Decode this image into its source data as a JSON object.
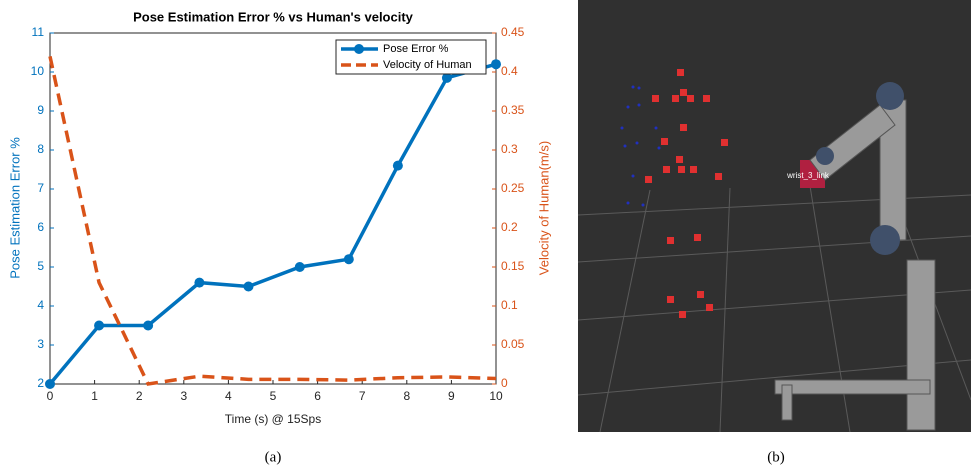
{
  "chart_data": {
    "type": "line",
    "title": "Pose Estimation Error % vs Human's velocity",
    "x_label": "Time (s) @ 15Sps",
    "y_label": "Pose Estimation Error %",
    "y2_label": "Velocity of Human(m/s)",
    "x": [
      0,
      1.1,
      2.2,
      3.35,
      4.45,
      5.6,
      6.7,
      7.8,
      8.9,
      10
    ],
    "xlim": [
      0,
      10
    ],
    "xticks": [
      0,
      1,
      2,
      3,
      4,
      5,
      6,
      7,
      8,
      9,
      10
    ],
    "ylim": [
      2,
      11
    ],
    "yticks": [
      2,
      3,
      4,
      5,
      6,
      7,
      8,
      9,
      10,
      11
    ],
    "y2lim": [
      0,
      0.45
    ],
    "y2ticks": [
      0,
      0.05,
      0.1,
      0.15,
      0.2,
      0.25,
      0.3,
      0.35,
      0.4,
      0.45
    ],
    "legend": "upper right",
    "series": [
      {
        "name": "Pose Error %",
        "color": "#0072BD",
        "values": [
          2.0,
          3.5,
          3.5,
          4.6,
          4.5,
          5.0,
          5.2,
          7.6,
          9.85,
          10.2
        ]
      },
      {
        "name": "Velocity of Human",
        "color": "#D95319",
        "axis": "y2",
        "values": [
          0.42,
          0.13,
          0,
          0.01,
          0.006,
          0.006,
          0.005,
          0.008,
          0.009,
          0.007
        ]
      }
    ]
  },
  "image_label": "wrist_3_link",
  "captions": [
    "(a)",
    "(b)"
  ]
}
